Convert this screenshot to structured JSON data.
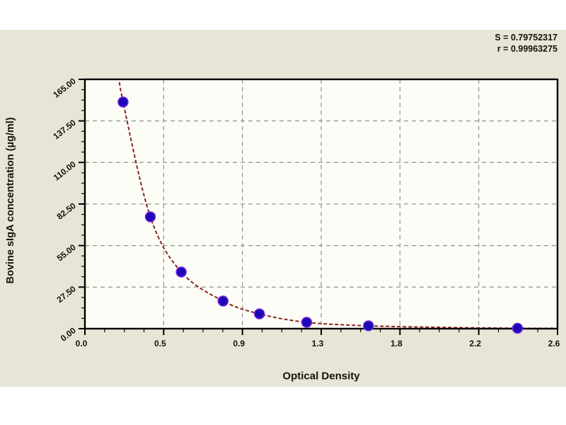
{
  "stats": {
    "s_label": "S = 0.79752317",
    "r_label": "r = 0.99963275"
  },
  "chart_data": {
    "type": "scatter",
    "title": "",
    "xlabel": "Optical Density",
    "ylabel": "Bovine sIgA concentration (µg/ml)",
    "xlim": [
      0,
      2.6
    ],
    "ylim": [
      0,
      165
    ],
    "x_tick_labels": [
      "0.0",
      "0.5",
      "0.9",
      "1.3",
      "1.8",
      "2.2",
      "2.6"
    ],
    "y_tick_labels": [
      "0.00",
      "27.50",
      "55.00",
      "82.50",
      "110.00",
      "137.50",
      "165.00"
    ],
    "minor_ticks_per_interval": 3,
    "grid": "dashed",
    "legend": "none",
    "x": [
      0.21,
      0.36,
      0.53,
      0.76,
      0.96,
      1.22,
      1.56,
      2.38
    ],
    "y": [
      150,
      74,
      37.5,
      18.3,
      9.8,
      4.2,
      1.9,
      0.3
    ],
    "fit_curve": {
      "description": "decreasing standard-curve fit through the points, clipped at plot top",
      "anchors": [
        [
          0.175,
          178
        ],
        [
          0.21,
          150
        ],
        [
          0.36,
          74
        ],
        [
          0.53,
          37.5
        ],
        [
          0.76,
          18.3
        ],
        [
          0.96,
          9.8
        ],
        [
          1.22,
          4.2
        ],
        [
          1.56,
          1.9
        ],
        [
          2.0,
          0.8
        ],
        [
          2.38,
          0.3
        ],
        [
          2.6,
          0.25
        ]
      ]
    },
    "colors": {
      "panel_bg": "#e9e5d6",
      "plot_bg": "#fdfdf7",
      "grid": "#999999",
      "axis": "#000000",
      "curve": "#8b2121",
      "marker_fill": "#1c08b8",
      "marker_edge": "#7b2bd8",
      "text": "#15120c"
    }
  }
}
